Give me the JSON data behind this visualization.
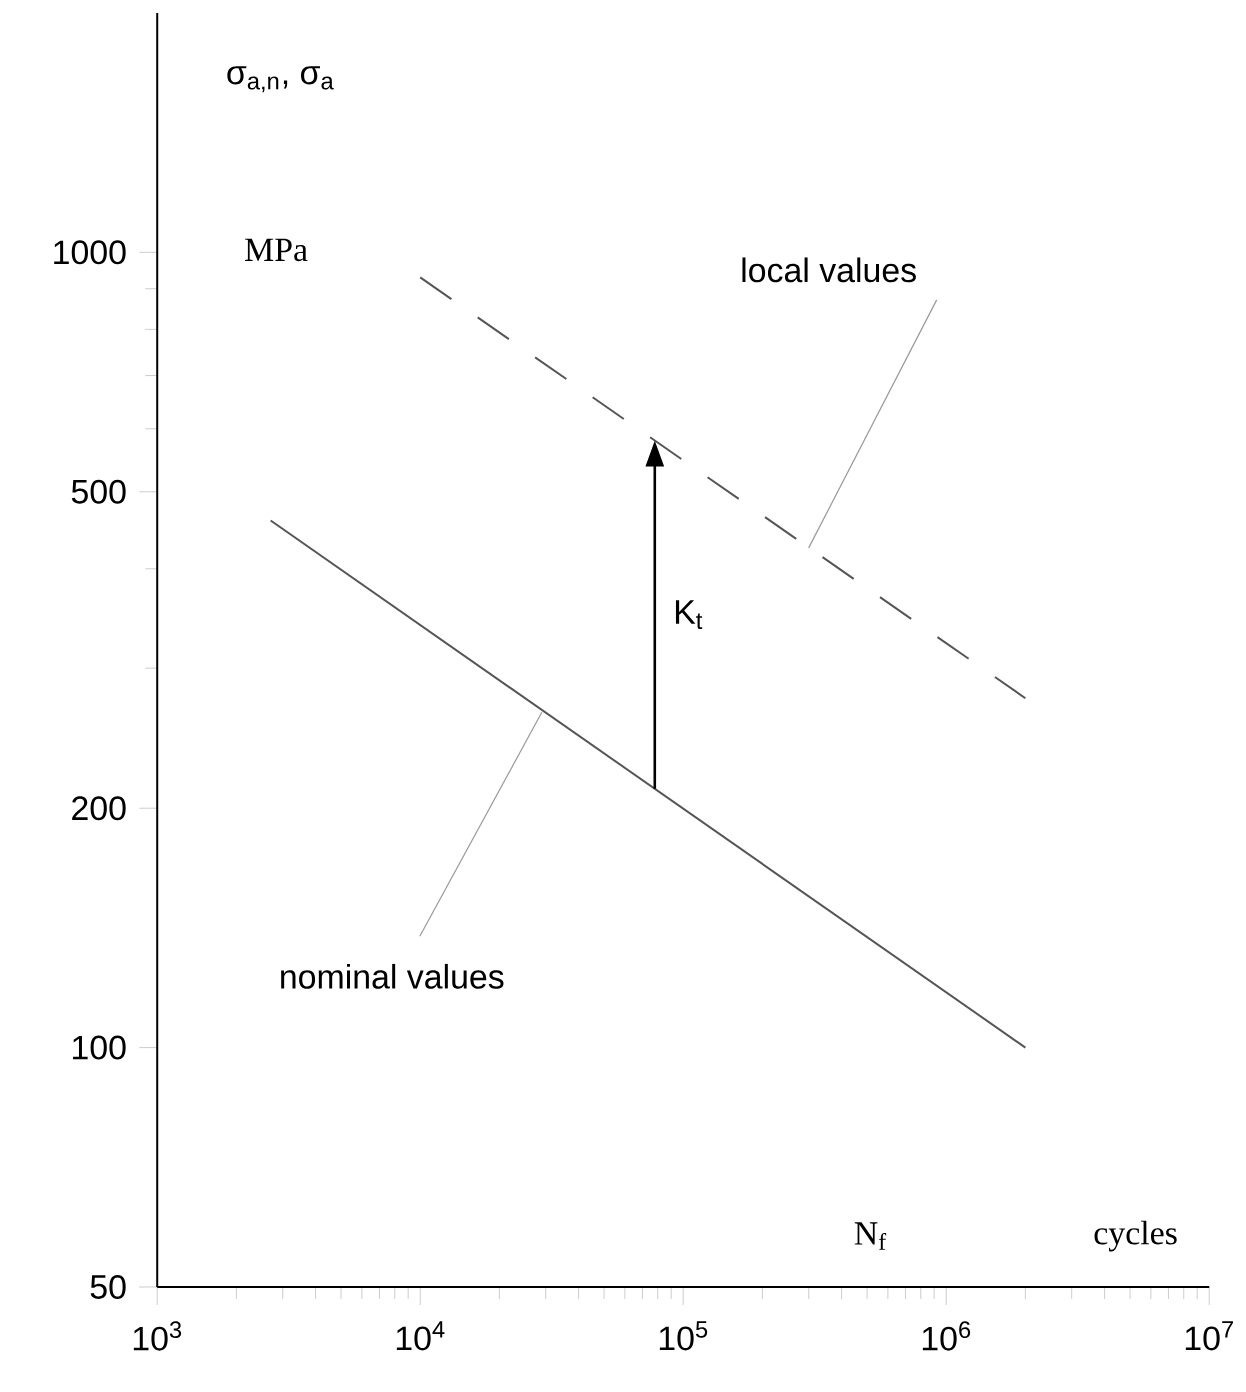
{
  "chart_data": {
    "type": "line",
    "log": "xy",
    "ylabel": "σ$_{a,n}$, σ$_{a}$",
    "xlabel": "N$_{f}$",
    "xlim": [
      1000,
      10000000
    ],
    "ylim": [
      50,
      2000
    ],
    "xticks": [
      {
        "value": 1000,
        "label": "10$^{3}$"
      },
      {
        "value": 2000,
        "label": null
      },
      {
        "value": 3000,
        "label": null
      },
      {
        "value": 4000,
        "label": null
      },
      {
        "value": 5000,
        "label": null
      },
      {
        "value": 6000,
        "label": null
      },
      {
        "value": 7000,
        "label": null
      },
      {
        "value": 8000,
        "label": null
      },
      {
        "value": 9000,
        "label": null
      },
      {
        "value": 10000,
        "label": "10$^{4}$"
      },
      {
        "value": 20000,
        "label": null
      },
      {
        "value": 30000,
        "label": null
      },
      {
        "value": 40000,
        "label": null
      },
      {
        "value": 50000,
        "label": null
      },
      {
        "value": 60000,
        "label": null
      },
      {
        "value": 70000,
        "label": null
      },
      {
        "value": 80000,
        "label": null
      },
      {
        "value": 90000,
        "label": null
      },
      {
        "value": 100000,
        "label": "10$^{5}$"
      },
      {
        "value": 200000,
        "label": null
      },
      {
        "value": 300000,
        "label": null
      },
      {
        "value": 400000,
        "label": null
      },
      {
        "value": 500000,
        "label": null
      },
      {
        "value": 600000,
        "label": null
      },
      {
        "value": 700000,
        "label": null
      },
      {
        "value": 800000,
        "label": null
      },
      {
        "value": 900000,
        "label": null
      },
      {
        "value": 1000000,
        "label": "10$^{6}$"
      },
      {
        "value": 2000000,
        "label": null
      },
      {
        "value": 3000000,
        "label": null
      },
      {
        "value": 4000000,
        "label": null
      },
      {
        "value": 5000000,
        "label": null
      },
      {
        "value": 6000000,
        "label": null
      },
      {
        "value": 7000000,
        "label": null
      },
      {
        "value": 8000000,
        "label": null
      },
      {
        "value": 9000000,
        "label": null
      },
      {
        "value": 10000000,
        "label": "10$^{7}$"
      }
    ],
    "yticks": [
      50,
      100,
      200,
      {
        "value": 300,
        "label": null
      },
      {
        "value": 400,
        "label": null
      },
      500,
      {
        "value": 600,
        "label": null
      },
      {
        "value": 700,
        "label": null
      },
      {
        "value": 800,
        "label": null
      },
      {
        "value": 900,
        "label": null
      },
      1000
    ],
    "grid": false,
    "series": [
      {
        "color": "#555555",
        "line_style": "solid",
        "x": [
          2700,
          2000000
        ],
        "values": [
          460,
          100
        ]
      },
      {
        "color": "#555555",
        "line_style": "dashed",
        "x": [
          10000,
          2000000
        ],
        "values": [
          930,
          275
        ]
      }
    ],
    "annotations": [
      "K$_{t}$",
      {
        "text": "nominal values",
        "x": 29000,
        "y": 264
      },
      {
        "text": "local values",
        "x": 300000,
        "y": 425
      },
      "MPa",
      "cycles"
    ]
  }
}
